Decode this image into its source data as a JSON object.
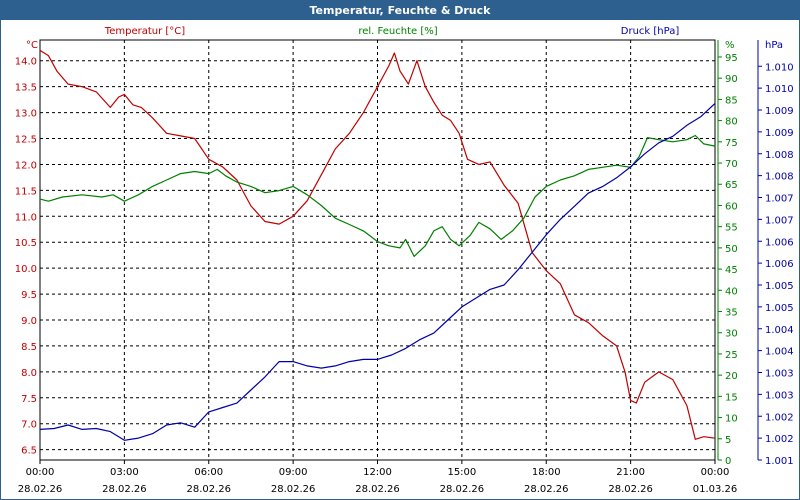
{
  "window": {
    "title": "Temperatur, Feuchte & Druck"
  },
  "colors": {
    "temperature": "#c00000",
    "humidity": "#008000",
    "pressure": "#0000a8",
    "grid": "#000000",
    "frame": "#2d5f8f"
  },
  "chart_data": {
    "type": "line",
    "title": "Temperatur, Feuchte & Druck",
    "x_ticks": [
      {
        "time": "00:00",
        "date": "28.02.26"
      },
      {
        "time": "03:00",
        "date": "28.02.26"
      },
      {
        "time": "06:00",
        "date": "28.02.26"
      },
      {
        "time": "09:00",
        "date": "28.02.26"
      },
      {
        "time": "12:00",
        "date": "28.02.26"
      },
      {
        "time": "15:00",
        "date": "28.02.26"
      },
      {
        "time": "18:00",
        "date": "28.02.26"
      },
      {
        "time": "21:00",
        "date": "28.02.26"
      },
      {
        "time": "00:00",
        "date": "01.03.26"
      }
    ],
    "x_range_hours": [
      0,
      24
    ],
    "axes": {
      "temperature": {
        "label": "Temperatur [°C]",
        "unit": "°C",
        "range": [
          6.3,
          14.4
        ],
        "ticks": [
          "6.5",
          "7.0",
          "7.5",
          "8.0",
          "8.5",
          "9.0",
          "9.5",
          "10.0",
          "10.5",
          "11.0",
          "11.5",
          "12.0",
          "12.5",
          "13.0",
          "13.5",
          "14.0"
        ]
      },
      "humidity": {
        "label": "rel. Feuchte [%]",
        "unit": "%",
        "range": [
          0,
          99
        ],
        "ticks": [
          "0",
          "5",
          "10",
          "15",
          "20",
          "25",
          "30",
          "35",
          "40",
          "45",
          "50",
          "55",
          "60",
          "65",
          "70",
          "75",
          "80",
          "85",
          "90",
          "95"
        ]
      },
      "pressure": {
        "label": "Druck [hPa]",
        "unit": "hPa",
        "range": [
          1001.0,
          1010.6
        ],
        "ticks": [
          "1.001",
          "1.002",
          "1.002",
          "1.003",
          "1.003",
          "1.004",
          "1.004",
          "1.005",
          "1.005",
          "1.006",
          "1.006",
          "1.007",
          "1.007",
          "1.008",
          "1.008",
          "1.009",
          "1.009",
          "1.010",
          "1.010"
        ]
      }
    },
    "series": [
      {
        "name": "Temperatur",
        "axis": "temperature",
        "color": "#c00000",
        "points": [
          [
            0,
            14.2
          ],
          [
            0.3,
            14.1
          ],
          [
            0.6,
            13.8
          ],
          [
            1,
            13.55
          ],
          [
            1.5,
            13.5
          ],
          [
            2,
            13.4
          ],
          [
            2.5,
            13.1
          ],
          [
            2.8,
            13.3
          ],
          [
            3,
            13.35
          ],
          [
            3.3,
            13.15
          ],
          [
            3.6,
            13.1
          ],
          [
            4,
            12.9
          ],
          [
            4.5,
            12.6
          ],
          [
            5,
            12.55
          ],
          [
            5.5,
            12.5
          ],
          [
            6,
            12.1
          ],
          [
            6.5,
            11.95
          ],
          [
            7,
            11.7
          ],
          [
            7.5,
            11.2
          ],
          [
            8,
            10.9
          ],
          [
            8.5,
            10.85
          ],
          [
            9,
            11.0
          ],
          [
            9.5,
            11.3
          ],
          [
            10,
            11.8
          ],
          [
            10.5,
            12.3
          ],
          [
            11,
            12.6
          ],
          [
            11.5,
            13.0
          ],
          [
            12,
            13.5
          ],
          [
            12.4,
            13.9
          ],
          [
            12.6,
            14.15
          ],
          [
            12.8,
            13.8
          ],
          [
            13.1,
            13.55
          ],
          [
            13.4,
            14.0
          ],
          [
            13.7,
            13.5
          ],
          [
            14,
            13.2
          ],
          [
            14.3,
            12.95
          ],
          [
            14.6,
            12.85
          ],
          [
            14.9,
            12.6
          ],
          [
            15.2,
            12.1
          ],
          [
            15.6,
            12.0
          ],
          [
            16,
            12.05
          ],
          [
            16.5,
            11.6
          ],
          [
            17,
            11.25
          ],
          [
            17.5,
            10.3
          ],
          [
            18,
            9.95
          ],
          [
            18.5,
            9.7
          ],
          [
            19,
            9.1
          ],
          [
            19.5,
            8.95
          ],
          [
            20,
            8.7
          ],
          [
            20.5,
            8.5
          ],
          [
            20.8,
            8.0
          ],
          [
            21,
            7.45
          ],
          [
            21.2,
            7.4
          ],
          [
            21.5,
            7.8
          ],
          [
            22,
            8.0
          ],
          [
            22.5,
            7.85
          ],
          [
            23,
            7.35
          ],
          [
            23.3,
            6.7
          ],
          [
            23.6,
            6.75
          ],
          [
            24,
            6.72
          ]
        ]
      },
      {
        "name": "rel. Feuchte",
        "axis": "humidity",
        "color": "#008000",
        "points": [
          [
            0,
            61.5
          ],
          [
            0.3,
            61.0
          ],
          [
            0.8,
            62.0
          ],
          [
            1.5,
            62.5
          ],
          [
            2.2,
            62.0
          ],
          [
            2.6,
            62.5
          ],
          [
            3,
            61.0
          ],
          [
            3.5,
            62.5
          ],
          [
            4,
            64.5
          ],
          [
            4.5,
            66.0
          ],
          [
            5,
            67.5
          ],
          [
            5.5,
            68.0
          ],
          [
            6,
            67.5
          ],
          [
            6.3,
            68.5
          ],
          [
            6.6,
            67.0
          ],
          [
            7,
            65.5
          ],
          [
            7.5,
            64.5
          ],
          [
            8,
            63.0
          ],
          [
            8.5,
            63.5
          ],
          [
            9,
            64.5
          ],
          [
            9.5,
            62.5
          ],
          [
            10,
            60.0
          ],
          [
            10.5,
            57.0
          ],
          [
            11,
            55.5
          ],
          [
            11.5,
            54.0
          ],
          [
            12,
            51.5
          ],
          [
            12.4,
            50.5
          ],
          [
            12.8,
            50.0
          ],
          [
            13,
            52.0
          ],
          [
            13.3,
            48.0
          ],
          [
            13.7,
            50.5
          ],
          [
            14,
            54.0
          ],
          [
            14.3,
            55.0
          ],
          [
            14.6,
            52.0
          ],
          [
            14.9,
            50.5
          ],
          [
            15.3,
            53.0
          ],
          [
            15.6,
            56.0
          ],
          [
            16,
            54.5
          ],
          [
            16.4,
            52.0
          ],
          [
            16.8,
            54.0
          ],
          [
            17.2,
            57.0
          ],
          [
            17.6,
            62.0
          ],
          [
            18,
            64.5
          ],
          [
            18.5,
            66.0
          ],
          [
            19,
            67.0
          ],
          [
            19.5,
            68.5
          ],
          [
            20,
            69.0
          ],
          [
            20.5,
            69.5
          ],
          [
            21,
            69.0
          ],
          [
            21.3,
            71.5
          ],
          [
            21.6,
            76.0
          ],
          [
            22,
            75.5
          ],
          [
            22.5,
            75.0
          ],
          [
            23,
            75.5
          ],
          [
            23.3,
            76.5
          ],
          [
            23.6,
            74.5
          ],
          [
            24,
            74.0
          ]
        ]
      },
      {
        "name": "Druck",
        "axis": "pressure",
        "color": "#0000a8",
        "points": [
          [
            0,
            1001.7
          ],
          [
            0.5,
            1001.72
          ],
          [
            1,
            1001.8
          ],
          [
            1.5,
            1001.7
          ],
          [
            2,
            1001.72
          ],
          [
            2.5,
            1001.65
          ],
          [
            3,
            1001.45
          ],
          [
            3.5,
            1001.5
          ],
          [
            4,
            1001.6
          ],
          [
            4.5,
            1001.8
          ],
          [
            5,
            1001.85
          ],
          [
            5.5,
            1001.75
          ],
          [
            6,
            1002.1
          ],
          [
            6.5,
            1002.2
          ],
          [
            7,
            1002.3
          ],
          [
            7.5,
            1002.6
          ],
          [
            8,
            1002.9
          ],
          [
            8.5,
            1003.25
          ],
          [
            9,
            1003.25
          ],
          [
            9.5,
            1003.15
          ],
          [
            10,
            1003.1
          ],
          [
            10.5,
            1003.15
          ],
          [
            11,
            1003.25
          ],
          [
            11.5,
            1003.3
          ],
          [
            12,
            1003.3
          ],
          [
            12.5,
            1003.4
          ],
          [
            13,
            1003.55
          ],
          [
            13.5,
            1003.75
          ],
          [
            14,
            1003.9
          ],
          [
            14.5,
            1004.2
          ],
          [
            15,
            1004.5
          ],
          [
            15.5,
            1004.7
          ],
          [
            16,
            1004.9
          ],
          [
            16.5,
            1005.0
          ],
          [
            17,
            1005.35
          ],
          [
            17.5,
            1005.75
          ],
          [
            18,
            1006.15
          ],
          [
            18.5,
            1006.5
          ],
          [
            19,
            1006.8
          ],
          [
            19.5,
            1007.1
          ],
          [
            20,
            1007.25
          ],
          [
            20.5,
            1007.45
          ],
          [
            21,
            1007.7
          ],
          [
            21.5,
            1008.0
          ],
          [
            22,
            1008.25
          ],
          [
            22.5,
            1008.4
          ],
          [
            23,
            1008.65
          ],
          [
            23.5,
            1008.85
          ],
          [
            24,
            1009.15
          ]
        ]
      }
    ]
  }
}
